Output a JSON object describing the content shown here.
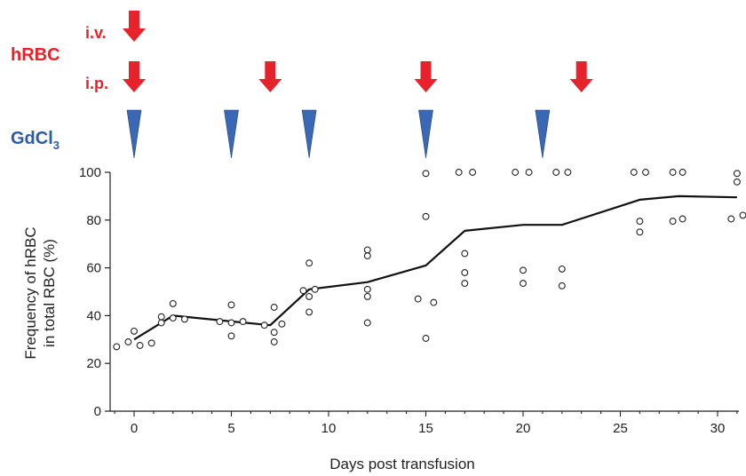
{
  "labels": {
    "hrbc": "hRBC",
    "iv": "i.v.",
    "ip": "i.p.",
    "gdcl": "GdCl",
    "gdcl_sub": "3"
  },
  "colors": {
    "red_arrow": "#e8222a",
    "blue_triangle": "#3a68b4",
    "line": "#111111"
  },
  "chart_data": {
    "type": "scatter",
    "xlabel": "Days post transfusion",
    "ylabel_line1": "Frequency of hRBC",
    "ylabel_line2": "in total RBC (%)",
    "xlim": [
      -1,
      31.5
    ],
    "ylim": [
      0,
      100
    ],
    "x_ticks": [
      0,
      5,
      10,
      15,
      20,
      25,
      30
    ],
    "y_ticks": [
      0,
      20,
      40,
      60,
      80,
      100
    ],
    "grid": false,
    "iv_injection_days": [
      0
    ],
    "ip_injection_days": [
      0,
      7,
      15,
      23
    ],
    "gdcl3_injection_days": [
      0,
      5,
      9,
      15,
      21
    ],
    "mean_line": {
      "x": [
        0,
        2,
        7,
        9,
        12,
        15,
        17,
        20,
        22,
        26,
        28,
        31
      ],
      "y": [
        30,
        40,
        36,
        51,
        54,
        61,
        75.5,
        78,
        78,
        88.5,
        90,
        89.5
      ]
    },
    "points": [
      {
        "x": -0.9,
        "y": 27
      },
      {
        "x": -0.3,
        "y": 29
      },
      {
        "x": 0,
        "y": 33.5
      },
      {
        "x": 0.3,
        "y": 27.5
      },
      {
        "x": 0.9,
        "y": 28.5
      },
      {
        "x": 1.4,
        "y": 37
      },
      {
        "x": 1.4,
        "y": 39.5
      },
      {
        "x": 2,
        "y": 39
      },
      {
        "x": 2,
        "y": 45
      },
      {
        "x": 2.6,
        "y": 38.5
      },
      {
        "x": 4.4,
        "y": 37.5
      },
      {
        "x": 5,
        "y": 44.5
      },
      {
        "x": 5,
        "y": 37
      },
      {
        "x": 5,
        "y": 31.5
      },
      {
        "x": 5.6,
        "y": 37.5
      },
      {
        "x": 6.7,
        "y": 36
      },
      {
        "x": 7.2,
        "y": 43.5
      },
      {
        "x": 7.2,
        "y": 33
      },
      {
        "x": 7.2,
        "y": 29
      },
      {
        "x": 7.6,
        "y": 36.5
      },
      {
        "x": 8.7,
        "y": 50.5
      },
      {
        "x": 9,
        "y": 62
      },
      {
        "x": 9,
        "y": 48
      },
      {
        "x": 9,
        "y": 41.5
      },
      {
        "x": 9.3,
        "y": 51
      },
      {
        "x": 12,
        "y": 67.5
      },
      {
        "x": 12,
        "y": 65
      },
      {
        "x": 12,
        "y": 51
      },
      {
        "x": 12,
        "y": 48
      },
      {
        "x": 12,
        "y": 37
      },
      {
        "x": 14.6,
        "y": 47
      },
      {
        "x": 15,
        "y": 99.5
      },
      {
        "x": 15,
        "y": 81.5
      },
      {
        "x": 15,
        "y": 30.5
      },
      {
        "x": 15.4,
        "y": 45.5
      },
      {
        "x": 16.7,
        "y": 100
      },
      {
        "x": 17,
        "y": 66
      },
      {
        "x": 17,
        "y": 58
      },
      {
        "x": 17,
        "y": 53.5
      },
      {
        "x": 17.4,
        "y": 100
      },
      {
        "x": 19.6,
        "y": 100
      },
      {
        "x": 20,
        "y": 59
      },
      {
        "x": 20,
        "y": 53.5
      },
      {
        "x": 20.3,
        "y": 100
      },
      {
        "x": 21.7,
        "y": 100
      },
      {
        "x": 22,
        "y": 59.5
      },
      {
        "x": 22,
        "y": 52.5
      },
      {
        "x": 22.3,
        "y": 100
      },
      {
        "x": 25.7,
        "y": 100
      },
      {
        "x": 26,
        "y": 79.5
      },
      {
        "x": 26,
        "y": 75
      },
      {
        "x": 26.3,
        "y": 100
      },
      {
        "x": 27.7,
        "y": 100
      },
      {
        "x": 27.7,
        "y": 79.5
      },
      {
        "x": 28.2,
        "y": 100
      },
      {
        "x": 28.2,
        "y": 80.5
      },
      {
        "x": 30.7,
        "y": 80.5
      },
      {
        "x": 31,
        "y": 99.5
      },
      {
        "x": 31,
        "y": 96
      },
      {
        "x": 31.3,
        "y": 82
      }
    ]
  }
}
